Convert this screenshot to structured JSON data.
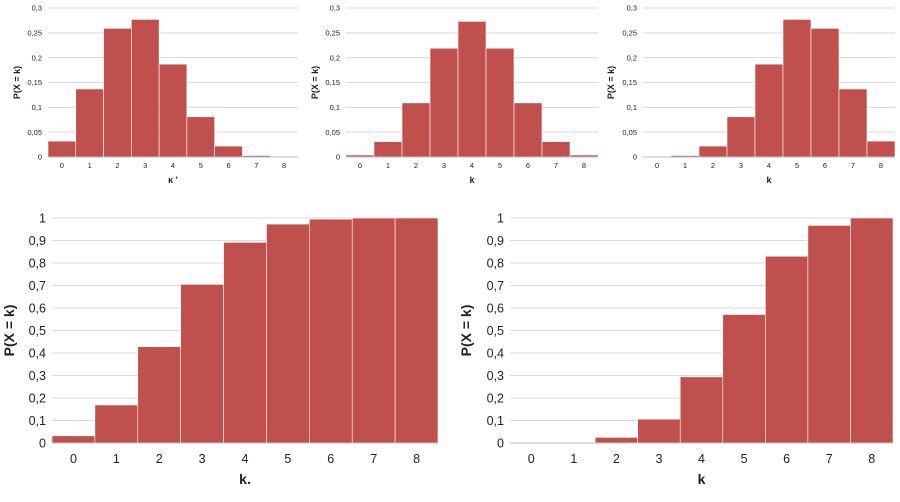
{
  "chart_data": [
    {
      "type": "bar",
      "categories": [
        "0",
        "1",
        "2",
        "3",
        "4",
        "5",
        "6",
        "7",
        "8"
      ],
      "values": [
        0.032,
        0.137,
        0.259,
        0.277,
        0.187,
        0.081,
        0.022,
        0.003,
        0.0002
      ],
      "xlabel": "κ '",
      "ylabel": "P(X = k)",
      "ylim": [
        0,
        0.3
      ],
      "yticks": [
        "0",
        "0,05",
        "0,1",
        "0,15",
        "0,2",
        "0,25",
        "0,3"
      ],
      "grid": true,
      "bar_color": "#c0504d"
    },
    {
      "type": "bar",
      "categories": [
        "0",
        "1",
        "2",
        "3",
        "4",
        "5",
        "6",
        "7",
        "8"
      ],
      "values": [
        0.004,
        0.031,
        0.109,
        0.219,
        0.273,
        0.219,
        0.109,
        0.031,
        0.004
      ],
      "xlabel": "k",
      "ylabel": "P(X = k)",
      "ylim": [
        0,
        0.3
      ],
      "yticks": [
        "0",
        "0,05",
        "0,1",
        "0,15",
        "0,2",
        "0,25",
        "0,3"
      ],
      "grid": true,
      "bar_color": "#c0504d"
    },
    {
      "type": "bar",
      "categories": [
        "0",
        "1",
        "2",
        "3",
        "4",
        "5",
        "6",
        "7",
        "8"
      ],
      "values": [
        0.0002,
        0.003,
        0.022,
        0.081,
        0.187,
        0.277,
        0.259,
        0.137,
        0.032
      ],
      "xlabel": "k",
      "ylabel": "P(X = k)",
      "ylim": [
        0,
        0.3
      ],
      "yticks": [
        "0",
        "0,05",
        "0,1",
        "0,15",
        "0,2",
        "0,25",
        "0,3"
      ],
      "grid": true,
      "bar_color": "#c0504d"
    },
    {
      "type": "bar",
      "categories": [
        "0",
        "1",
        "2",
        "3",
        "4",
        "5",
        "6",
        "7",
        "8"
      ],
      "values": [
        0.032,
        0.169,
        0.428,
        0.705,
        0.892,
        0.973,
        0.995,
        0.9998,
        1.0
      ],
      "xlabel": "k.",
      "ylabel": "P(X = k)",
      "ylim": [
        0,
        1
      ],
      "yticks": [
        "0",
        "0,1",
        "0,2",
        "0,3",
        "0,4",
        "0,5",
        "0,6",
        "0,7",
        "0,8",
        "0,9",
        "1"
      ],
      "grid": true,
      "bar_color": "#c0504d"
    },
    {
      "type": "bar",
      "categories": [
        "0",
        "1",
        "2",
        "3",
        "4",
        "5",
        "6",
        "7",
        "8"
      ],
      "values": [
        0.0002,
        0.003,
        0.025,
        0.106,
        0.294,
        0.571,
        0.83,
        0.967,
        1.0
      ],
      "xlabel": "k",
      "ylabel": "P(X = k)",
      "ylim": [
        0,
        1
      ],
      "yticks": [
        "0",
        "0,1",
        "0,2",
        "0,3",
        "0,4",
        "0,5",
        "0,6",
        "0,7",
        "0,8",
        "0,9",
        "1"
      ],
      "grid": true,
      "bar_color": "#c0504d"
    }
  ]
}
